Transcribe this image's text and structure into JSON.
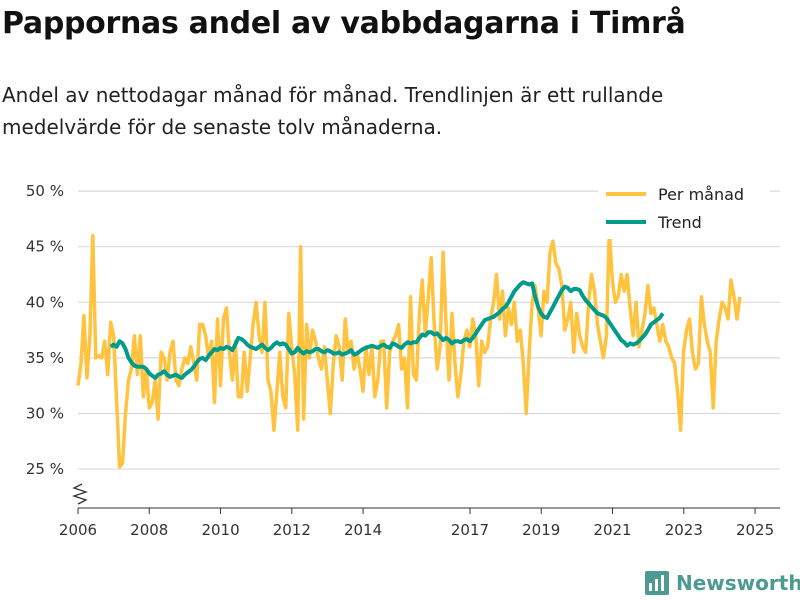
{
  "title": "Pappornas andel av vabbdagarna i Timrå",
  "subtitle": "Andel av nettodagar månad för månad. Trendlinjen är ett rullande medelvärde för de senaste tolv månaderna.",
  "brand": {
    "name": "Newsworthy",
    "color": "#4c9a93"
  },
  "colors": {
    "monthly": "#ffc340",
    "trend": "#009b8b",
    "grid": "#d9d9d9",
    "axis": "#333333"
  },
  "chart_data": {
    "type": "line",
    "x_start": 2006.0,
    "x_step": 0.0833,
    "xlim": [
      2006.0,
      2025.7
    ],
    "ylim": [
      21.5,
      51
    ],
    "y_ticks": [
      25,
      30,
      35,
      40,
      45,
      50
    ],
    "y_tick_labels": [
      "25 %",
      "30 %",
      "35 %",
      "40 %",
      "45 %",
      "50 %"
    ],
    "x_ticks": [
      2006,
      2008,
      2010,
      2012,
      2014,
      2017,
      2019,
      2021,
      2023,
      2025
    ],
    "x_tick_labels": [
      "2006",
      "2008",
      "2010",
      "2012",
      "2014",
      "2017",
      "2019",
      "2021",
      "2023",
      "2025"
    ],
    "y_axis_break": true,
    "legend_position": "top-right",
    "series": [
      {
        "name": "Per månad",
        "values": [
          32.5,
          34.5,
          38.8,
          33.2,
          37.0,
          46.0,
          35.0,
          35.2,
          35.0,
          36.5,
          33.5,
          38.2,
          37.0,
          31.2,
          25.2,
          25.5,
          30.0,
          33.0,
          34.0,
          37.0,
          33.5,
          37.0,
          31.5,
          34.0,
          30.5,
          31.0,
          33.0,
          29.5,
          35.5,
          35.0,
          33.0,
          35.5,
          36.5,
          33.0,
          32.5,
          34.0,
          35.0,
          34.5,
          36.0,
          34.5,
          33.0,
          38.0,
          38.0,
          37.0,
          35.0,
          36.5,
          31.0,
          38.5,
          32.5,
          38.5,
          39.5,
          35.5,
          33.0,
          36.5,
          31.5,
          31.5,
          35.5,
          32.0,
          35.0,
          38.0,
          40.0,
          37.0,
          35.5,
          40.0,
          33.0,
          32.0,
          28.5,
          32.0,
          35.5,
          31.5,
          30.5,
          39.0,
          36.0,
          33.5,
          28.5,
          45.0,
          29.5,
          38.0,
          35.0,
          37.5,
          36.5,
          35.0,
          34.0,
          36.0,
          33.0,
          30.0,
          34.5,
          37.0,
          36.0,
          33.0,
          38.5,
          35.5,
          36.5,
          34.0,
          35.5,
          34.0,
          32.0,
          36.0,
          33.5,
          36.0,
          31.5,
          33.0,
          36.5,
          36.5,
          30.5,
          35.5,
          36.5,
          37.0,
          38.0,
          34.0,
          35.0,
          30.5,
          40.5,
          33.5,
          33.0,
          39.0,
          42.0,
          37.0,
          40.5,
          44.0,
          38.0,
          34.0,
          36.0,
          44.5,
          38.0,
          33.0,
          39.0,
          34.5,
          31.5,
          33.5,
          36.5,
          37.5,
          36.0,
          38.5,
          37.0,
          32.5,
          36.5,
          35.5,
          36.0,
          38.5,
          40.0,
          42.5,
          38.5,
          41.0,
          37.0,
          39.5,
          38.0,
          40.0,
          36.5,
          37.5,
          34.5,
          30.0,
          35.5,
          40.0,
          41.5,
          39.5,
          37.0,
          41.0,
          40.0,
          44.5,
          45.5,
          43.5,
          43.0,
          41.5,
          37.5,
          38.5,
          40.0,
          35.5,
          39.0,
          37.0,
          36.0,
          35.5,
          40.0,
          42.5,
          41.0,
          38.0,
          36.5,
          35.0,
          37.0,
          46.5,
          42.0,
          40.0,
          40.5,
          42.5,
          41.0,
          42.5,
          39.5,
          37.0,
          40.0,
          36.0,
          37.5,
          39.0,
          41.5,
          39.0,
          39.5,
          38.0,
          36.5,
          38.0,
          36.5,
          36.0,
          35.0,
          34.5,
          32.0,
          28.5,
          35.5,
          37.5,
          38.5,
          35.5,
          34.0,
          34.5,
          40.5,
          38.0,
          36.5,
          35.5,
          30.5,
          36.5,
          38.5,
          40.0,
          39.5,
          38.5,
          42.0,
          40.5,
          38.5,
          40.5
        ],
        "color": "#ffc340"
      },
      {
        "name": "Trend",
        "x_start": 2006.9167,
        "values": [
          36.0,
          36.2,
          36.0,
          36.5,
          36.3,
          35.8,
          35.0,
          34.6,
          34.3,
          34.2,
          34.2,
          34.2,
          34.0,
          33.6,
          33.4,
          33.2,
          33.5,
          33.6,
          33.8,
          33.5,
          33.3,
          33.4,
          33.5,
          33.3,
          33.2,
          33.5,
          33.7,
          33.9,
          34.2,
          34.6,
          34.9,
          35.0,
          34.8,
          35.2,
          35.5,
          35.8,
          35.7,
          35.9,
          35.8,
          36.0,
          35.9,
          35.7,
          36.2,
          36.8,
          36.7,
          36.5,
          36.2,
          36.0,
          35.9,
          35.8,
          36.0,
          36.2,
          35.9,
          35.7,
          35.9,
          36.2,
          36.4,
          36.2,
          36.3,
          36.2,
          35.8,
          35.4,
          35.5,
          35.9,
          35.6,
          35.4,
          35.6,
          35.5,
          35.6,
          35.8,
          35.8,
          35.6,
          35.5,
          35.7,
          35.6,
          35.4,
          35.4,
          35.5,
          35.3,
          35.4,
          35.5,
          35.7,
          35.3,
          35.4,
          35.6,
          35.8,
          35.9,
          36.0,
          36.1,
          36.0,
          35.9,
          36.1,
          36.2,
          36.0,
          35.9,
          36.3,
          36.2,
          36.0,
          35.9,
          36.2,
          36.4,
          36.3,
          36.4,
          36.4,
          36.8,
          37.1,
          37.0,
          37.3,
          37.3,
          37.1,
          37.2,
          36.9,
          36.6,
          36.8,
          36.6,
          36.3,
          36.5,
          36.5,
          36.4,
          36.6,
          36.7,
          36.5,
          36.8,
          37.2,
          37.6,
          38.0,
          38.4,
          38.5,
          38.6,
          38.7,
          38.9,
          39.1,
          39.4,
          39.6,
          40.0,
          40.5,
          41.0,
          41.3,
          41.6,
          41.8,
          41.7,
          41.6,
          41.7,
          40.5,
          39.6,
          39.0,
          38.7,
          38.6,
          39.1,
          39.6,
          40.1,
          40.6,
          41.1,
          41.4,
          41.3,
          41.0,
          41.2,
          41.2,
          41.1,
          40.6,
          40.2,
          39.9,
          39.6,
          39.3,
          39.0,
          38.9,
          38.8,
          38.6,
          38.2,
          37.8,
          37.4,
          37.0,
          36.6,
          36.4,
          36.1,
          36.3,
          36.2,
          36.3,
          36.5,
          36.8,
          37.1,
          37.5,
          38.0,
          38.2,
          38.4,
          38.6,
          39.0
        ],
        "color": "#009b8b"
      }
    ]
  }
}
